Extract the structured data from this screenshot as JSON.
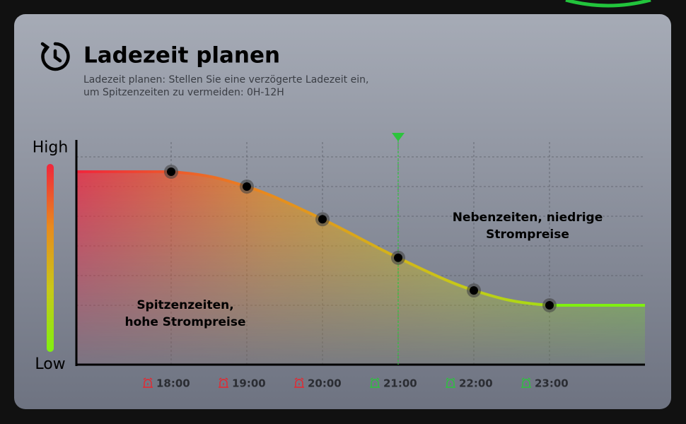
{
  "chart_data": {
    "type": "line",
    "title": "Ladezeit planen",
    "subtitle": [
      "Ladezeit planen: Stellen Sie eine verzögerte Ladezeit ein,",
      "um Spitzenzeiten zu vermeiden: 0H-12H"
    ],
    "categories": [
      "18:00",
      "19:00",
      "20:00",
      "21:00",
      "22:00",
      "23:00"
    ],
    "category_colors": [
      "#e8262e",
      "#e8262e",
      "#e8262e",
      "#2cc43c",
      "#2cc43c",
      "#2cc43c"
    ],
    "values": [
      6.5,
      6,
      4.9,
      3.6,
      2.5,
      2
    ],
    "gradient": [
      "#f0263c",
      "#e88a1e",
      "#c8c818",
      "#80f010"
    ],
    "ylim": [
      0,
      7.5
    ],
    "yticks": [
      {
        "value": 7.3,
        "label": "High"
      },
      {
        "value": 0,
        "label": "Low"
      }
    ],
    "ygrid": [
      2,
      3,
      4,
      5,
      6,
      7
    ],
    "grid": true,
    "marker_index": 3,
    "marker_color": "#2cc43c",
    "annotations": [
      {
        "text": [
          "Spitzenzeiten,",
          "hohe Strompreise"
        ]
      },
      {
        "text": [
          "Nebenzeiten, niedrige",
          "Strompreise"
        ]
      }
    ]
  }
}
